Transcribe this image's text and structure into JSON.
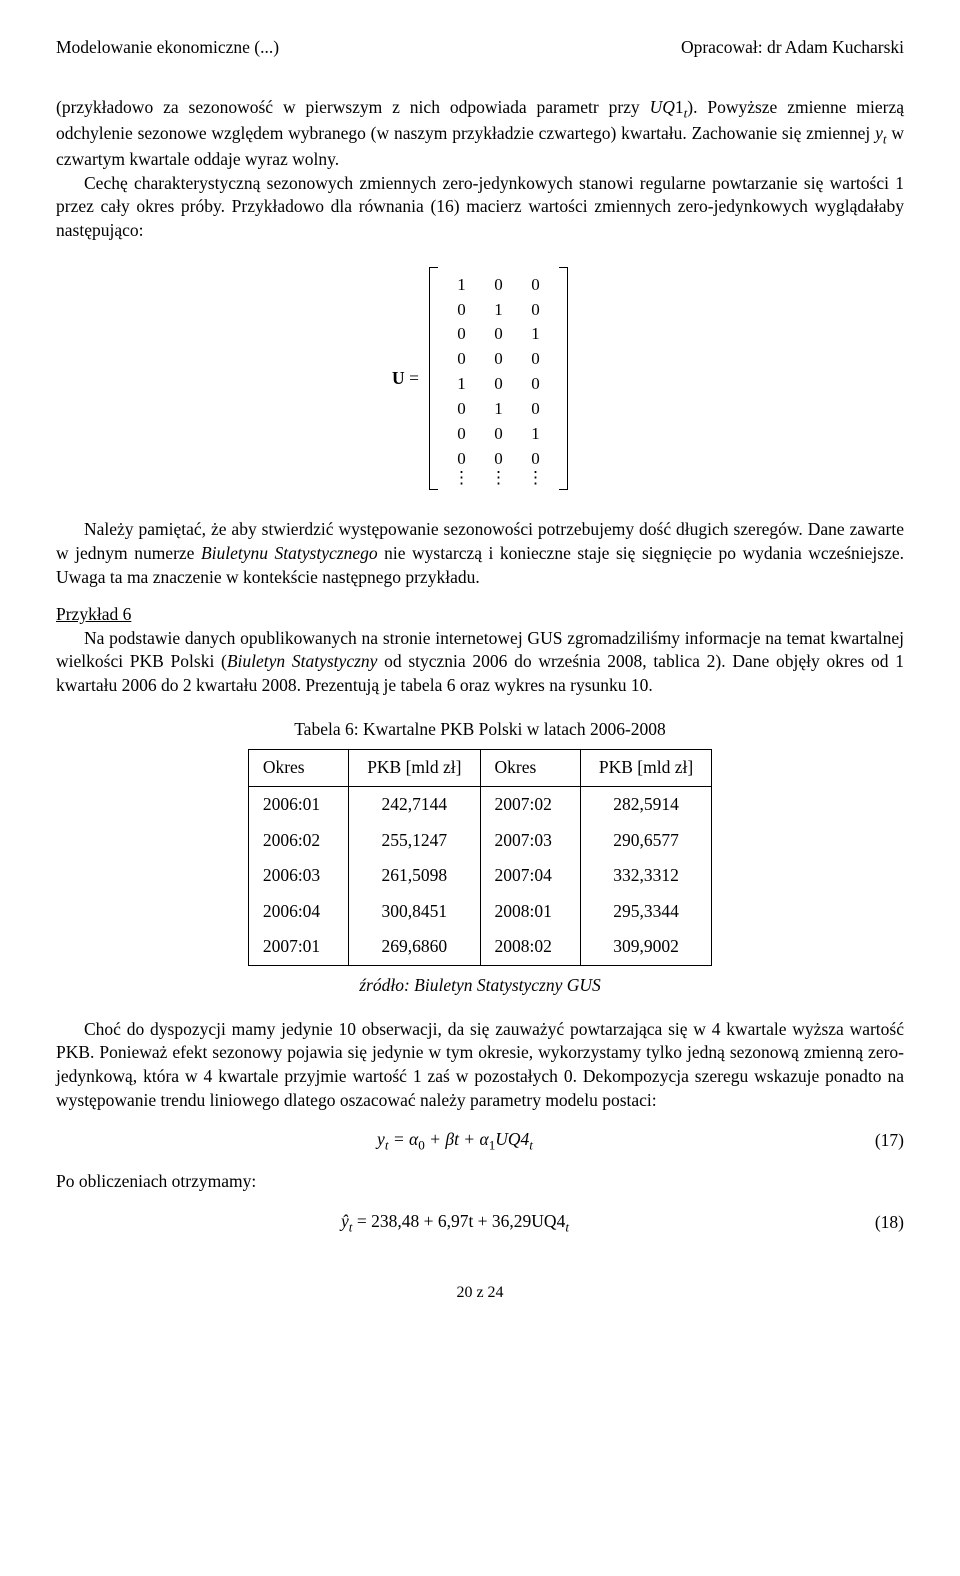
{
  "header": {
    "left": "Modelowanie ekonomiczne (...)",
    "right": "Opracował: dr Adam Kucharski"
  },
  "para1_a": "(przykładowo za sezonowość w pierwszym z nich odpowiada parametr przy ",
  "para1_b": "). Powyższe zmienne mierzą odchylenie sezonowe względem wybranego (w naszym przykładzie czwartego) kwartału. Zachowanie się zmiennej ",
  "para1_c": " w czwartym kwartale oddaje wyraz wolny.",
  "para2": "Cechę charakterystyczną sezonowych zmiennych zero-jedynkowych stanowi regularne powtarzanie się wartości 1 przez cały okres próby. Przykładowo dla równania (16) macierz wartości zmiennych zero-jedynkowych wyglądałaby następująco:",
  "matrix_label": "U =",
  "matrix_rows": [
    [
      "1",
      "0",
      "0"
    ],
    [
      "0",
      "1",
      "0"
    ],
    [
      "0",
      "0",
      "1"
    ],
    [
      "0",
      "0",
      "0"
    ],
    [
      "1",
      "0",
      "0"
    ],
    [
      "0",
      "1",
      "0"
    ],
    [
      "0",
      "0",
      "1"
    ],
    [
      "0",
      "0",
      "0"
    ],
    [
      "⋮",
      "⋮",
      "⋮"
    ]
  ],
  "para3_a": "Należy pamiętać, że aby stwierdzić występowanie sezonowości potrzebujemy dość długich szeregów. Dane zawarte w jednym numerze ",
  "para3_b": "Biuletynu Statystycznego",
  "para3_c": " nie wystarczą i konieczne staje się sięgnięcie po wydania wcześniejsze. Uwaga ta ma znaczenie w kontekście następnego przykładu.",
  "example_title": "Przykład 6",
  "para4_a": "Na podstawie danych opublikowanych na stronie internetowej GUS zgromadziliśmy informacje na temat kwartalnej wielkości PKB Polski (",
  "para4_b": "Biuletyn Statystyczny",
  "para4_c": " od stycznia 2006 do września 2008, tablica 2). Dane objęły okres od 1 kwartału 2006 do 2 kwartału 2008. Prezentują je tabela 6 oraz wykres na rysunku 10.",
  "table": {
    "caption": "Tabela 6: Kwartalne PKB Polski w latach 2006-2008",
    "headers": [
      "Okres",
      "PKB [mld zł]",
      "Okres",
      "PKB [mld zł]"
    ],
    "rows": [
      [
        "2006:01",
        "242,7144",
        "2007:02",
        "282,5914"
      ],
      [
        "2006:02",
        "255,1247",
        "2007:03",
        "290,6577"
      ],
      [
        "2006:03",
        "261,5098",
        "2007:04",
        "332,3312"
      ],
      [
        "2006:04",
        "300,8451",
        "2008:01",
        "295,3344"
      ],
      [
        "2007:01",
        "269,6860",
        "2008:02",
        "309,9002"
      ]
    ],
    "source": "źródło: Biuletyn Statystyczny GUS"
  },
  "para5": "Choć do dyspozycji mamy jedynie 10 obserwacji, da się zauważyć powtarzająca się w 4 kwartale wyższa wartość PKB. Ponieważ efekt sezonowy pojawia się jedynie w tym okresie, wykorzystamy tylko jedną sezonową zmienną zero-jedynkową, która w 4 kwartale przyjmie wartość 1 zaś w pozostałych 0. Dekompozycja szeregu wskazuje ponadto na występowanie trendu liniowego dlatego oszacować należy parametry modelu postaci:",
  "eq17": {
    "before_sub1": "y",
    "sub1": "t",
    "mid": " = α",
    "sub2": "0",
    "mid2": " + βt + α",
    "sub3": "1",
    "after": "UQ4",
    "sub4": "t",
    "num": "(17)"
  },
  "para6": "Po obliczeniach otrzymamy:",
  "eq18": {
    "before_sub1": "ŷ",
    "sub1": "t",
    "mid": " = 238,48 + 6,97t + 36,29UQ4",
    "sub2": "t",
    "num": "(18)"
  },
  "footer": "20 z 24"
}
